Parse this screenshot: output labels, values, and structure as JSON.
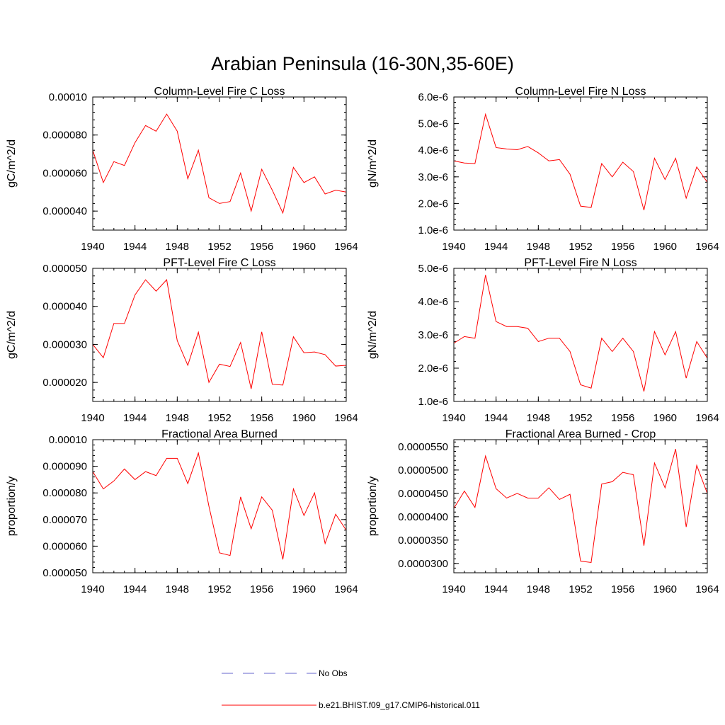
{
  "page": {
    "title": "Arabian Peninsula (16-30N,35-60E)"
  },
  "legend": {
    "items": [
      {
        "label": "No Obs",
        "style": "dashed",
        "color": "#6666cc"
      },
      {
        "label": "b.e21.BHIST.f09_g17.CMIP6-historical.011",
        "style": "solid",
        "color": "#ff0000"
      }
    ]
  },
  "chart_data": [
    {
      "type": "line",
      "title": "Column-Level Fire C Loss",
      "ylabel": "gC/m^2/d",
      "xlim": [
        1940,
        1964
      ],
      "ylim": [
        3e-05,
        0.0001
      ],
      "xticks": [
        1940,
        1944,
        1948,
        1952,
        1956,
        1960,
        1964
      ],
      "yticks": [
        4e-05,
        6e-05,
        8e-05,
        0.0001
      ],
      "ytick_labels": [
        "0.000040",
        "0.000060",
        "0.000080",
        "0.00010"
      ],
      "x": [
        1940,
        1941,
        1942,
        1943,
        1944,
        1945,
        1946,
        1947,
        1948,
        1949,
        1950,
        1951,
        1952,
        1953,
        1954,
        1955,
        1956,
        1957,
        1958,
        1959,
        1960,
        1961,
        1962,
        1963,
        1964
      ],
      "series": [
        {
          "name": "b.e21.BHIST.f09_g17.CMIP6-historical.011",
          "color": "#ff0000",
          "values": [
            7.2e-05,
            5.5e-05,
            6.6e-05,
            6.4e-05,
            7.6e-05,
            8.5e-05,
            8.2e-05,
            9.1e-05,
            8.2e-05,
            5.7e-05,
            7.2e-05,
            4.7e-05,
            4.4e-05,
            4.5e-05,
            6e-05,
            4e-05,
            6.2e-05,
            5.1e-05,
            3.9e-05,
            6.3e-05,
            5.5e-05,
            5.8e-05,
            4.9e-05,
            5.1e-05,
            5e-05
          ]
        }
      ]
    },
    {
      "type": "line",
      "title": "Column-Level Fire N Loss",
      "ylabel": "gN/m^2/d",
      "xlim": [
        1940,
        1964
      ],
      "ylim": [
        1e-06,
        6e-06
      ],
      "xticks": [
        1940,
        1944,
        1948,
        1952,
        1956,
        1960,
        1964
      ],
      "yticks": [
        1e-06,
        2e-06,
        3e-06,
        4e-06,
        5e-06,
        6e-06
      ],
      "ytick_labels": [
        "1.0e-6",
        "2.0e-6",
        "3.0e-6",
        "4.0e-6",
        "5.0e-6",
        "6.0e-6"
      ],
      "x": [
        1940,
        1941,
        1942,
        1943,
        1944,
        1945,
        1946,
        1947,
        1948,
        1949,
        1950,
        1951,
        1952,
        1953,
        1954,
        1955,
        1956,
        1957,
        1958,
        1959,
        1960,
        1961,
        1962,
        1963,
        1964
      ],
      "series": [
        {
          "name": "b.e21.BHIST.f09_g17.CMIP6-historical.011",
          "color": "#ff0000",
          "values": [
            3.6e-06,
            3.52e-06,
            3.5e-06,
            5.35e-06,
            4.1e-06,
            4.05e-06,
            4.02e-06,
            4.14e-06,
            3.9e-06,
            3.6e-06,
            3.65e-06,
            3.1e-06,
            1.9e-06,
            1.85e-06,
            3.5e-06,
            3e-06,
            3.55e-06,
            3.2e-06,
            1.75e-06,
            3.7e-06,
            2.9e-06,
            3.7e-06,
            2.2e-06,
            3.37e-06,
            2.8e-06
          ]
        }
      ]
    },
    {
      "type": "line",
      "title": "PFT-Level Fire C Loss",
      "ylabel": "gC/m^2/d",
      "xlim": [
        1940,
        1964
      ],
      "ylim": [
        1.5e-05,
        5e-05
      ],
      "xticks": [
        1940,
        1944,
        1948,
        1952,
        1956,
        1960,
        1964
      ],
      "yticks": [
        2e-05,
        3e-05,
        4e-05,
        5e-05
      ],
      "ytick_labels": [
        "0.000020",
        "0.000030",
        "0.000040",
        "0.000050"
      ],
      "x": [
        1940,
        1941,
        1942,
        1943,
        1944,
        1945,
        1946,
        1947,
        1948,
        1949,
        1950,
        1951,
        1952,
        1953,
        1954,
        1955,
        1956,
        1957,
        1958,
        1959,
        1960,
        1961,
        1962,
        1963,
        1964
      ],
      "series": [
        {
          "name": "b.e21.BHIST.f09_g17.CMIP6-historical.011",
          "color": "#ff0000",
          "values": [
            3e-05,
            2.65e-05,
            3.55e-05,
            3.55e-05,
            4.3e-05,
            4.7e-05,
            4.4e-05,
            4.7e-05,
            3.1e-05,
            2.45e-05,
            3.32e-05,
            2e-05,
            2.48e-05,
            2.42e-05,
            3.05e-05,
            1.83e-05,
            3.33e-05,
            1.95e-05,
            1.93e-05,
            3.2e-05,
            2.78e-05,
            2.8e-05,
            2.73e-05,
            2.43e-05,
            2.45e-05
          ]
        }
      ]
    },
    {
      "type": "line",
      "title": "PFT-Level Fire N Loss",
      "ylabel": "gN/m^2/d",
      "xlim": [
        1940,
        1964
      ],
      "ylim": [
        1e-06,
        5e-06
      ],
      "xticks": [
        1940,
        1944,
        1948,
        1952,
        1956,
        1960,
        1964
      ],
      "yticks": [
        1e-06,
        2e-06,
        3e-06,
        4e-06,
        5e-06
      ],
      "ytick_labels": [
        "1.0e-6",
        "2.0e-6",
        "3.0e-6",
        "4.0e-6",
        "5.0e-6"
      ],
      "x": [
        1940,
        1941,
        1942,
        1943,
        1944,
        1945,
        1946,
        1947,
        1948,
        1949,
        1950,
        1951,
        1952,
        1953,
        1954,
        1955,
        1956,
        1957,
        1958,
        1959,
        1960,
        1961,
        1962,
        1963,
        1964
      ],
      "series": [
        {
          "name": "b.e21.BHIST.f09_g17.CMIP6-historical.011",
          "color": "#ff0000",
          "values": [
            2.75e-06,
            2.95e-06,
            2.9e-06,
            4.8e-06,
            3.4e-06,
            3.25e-06,
            3.25e-06,
            3.2e-06,
            2.8e-06,
            2.9e-06,
            2.9e-06,
            2.5e-06,
            1.5e-06,
            1.4e-06,
            2.9e-06,
            2.5e-06,
            2.9e-06,
            2.5e-06,
            1.3e-06,
            3.1e-06,
            2.4e-06,
            3.1e-06,
            1.7e-06,
            2.8e-06,
            2.3e-06
          ]
        }
      ]
    },
    {
      "type": "line",
      "title": "Fractional Area Burned",
      "ylabel": "proportion/y",
      "xlim": [
        1940,
        1964
      ],
      "ylim": [
        5e-05,
        0.0001
      ],
      "xticks": [
        1940,
        1944,
        1948,
        1952,
        1956,
        1960,
        1964
      ],
      "yticks": [
        5e-05,
        6e-05,
        7e-05,
        8e-05,
        9e-05,
        0.0001
      ],
      "ytick_labels": [
        "0.000050",
        "0.000060",
        "0.000070",
        "0.000080",
        "0.000090",
        "0.00010"
      ],
      "x": [
        1940,
        1941,
        1942,
        1943,
        1944,
        1945,
        1946,
        1947,
        1948,
        1949,
        1950,
        1951,
        1952,
        1953,
        1954,
        1955,
        1956,
        1957,
        1958,
        1959,
        1960,
        1961,
        1962,
        1963,
        1964
      ],
      "series": [
        {
          "name": "b.e21.BHIST.f09_g17.CMIP6-historical.011",
          "color": "#ff0000",
          "values": [
            8.8e-05,
            8.15e-05,
            8.45e-05,
            8.9e-05,
            8.5e-05,
            8.8e-05,
            8.65e-05,
            9.3e-05,
            9.3e-05,
            8.35e-05,
            9.5e-05,
            7.5e-05,
            5.75e-05,
            5.65e-05,
            7.85e-05,
            6.65e-05,
            7.85e-05,
            7.35e-05,
            5.5e-05,
            8.15e-05,
            7.15e-05,
            8e-05,
            6.1e-05,
            7.2e-05,
            6.6e-05
          ]
        }
      ]
    },
    {
      "type": "line",
      "title": "Fractional Area Burned - Crop",
      "ylabel": "proportion/y",
      "xlim": [
        1940,
        1964
      ],
      "ylim": [
        2.8e-05,
        5.65e-05
      ],
      "xticks": [
        1940,
        1944,
        1948,
        1952,
        1956,
        1960,
        1964
      ],
      "yticks": [
        3e-05,
        3.5e-05,
        4e-05,
        4.5e-05,
        5e-05,
        5.5e-05
      ],
      "ytick_labels": [
        "0.0000300",
        "0.0000350",
        "0.0000400",
        "0.0000450",
        "0.0000500",
        "0.0000550"
      ],
      "x": [
        1940,
        1941,
        1942,
        1943,
        1944,
        1945,
        1946,
        1947,
        1948,
        1949,
        1950,
        1951,
        1952,
        1953,
        1954,
        1955,
        1956,
        1957,
        1958,
        1959,
        1960,
        1961,
        1962,
        1963,
        1964
      ],
      "series": [
        {
          "name": "b.e21.BHIST.f09_g17.CMIP6-historical.011",
          "color": "#ff0000",
          "values": [
            4.18e-05,
            4.55e-05,
            4.2e-05,
            5.3e-05,
            4.6e-05,
            4.4e-05,
            4.5e-05,
            4.4e-05,
            4.4e-05,
            4.62e-05,
            4.37e-05,
            4.48e-05,
            3.05e-05,
            3.02e-05,
            4.7e-05,
            4.75e-05,
            4.95e-05,
            4.9e-05,
            3.38e-05,
            5.15e-05,
            4.62e-05,
            5.45e-05,
            3.78e-05,
            5.1e-05,
            4.5e-05
          ]
        }
      ]
    }
  ]
}
